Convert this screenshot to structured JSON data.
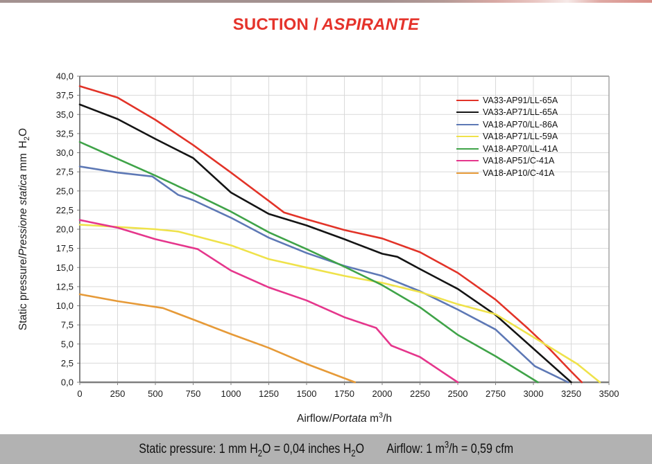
{
  "page": {
    "title_en": "SUCTION /",
    "title_it": "ASPIRANTE",
    "title_color": "#e5332b",
    "footer_bg": "#b2b2b2"
  },
  "footer": {
    "seg1_a": "Static pressure: 1 mm H",
    "seg1_sub1": "2",
    "seg1_b": "O = 0,04 inches H",
    "seg1_sub2": "2",
    "seg1_c": "O",
    "seg2_a": "Airflow: 1 m",
    "seg2_sup": "3",
    "seg2_b": "/h = 0,59 cfm"
  },
  "axis_titles": {
    "y_en": "Static pressure/",
    "y_it": "Pressione statica",
    "y_unit_a": "mm",
    "y_unit_b": "H",
    "y_unit_sub": "2",
    "y_unit_c": "O",
    "x_en": "Airflow/",
    "x_it": "Portata",
    "x_unit_a": "m",
    "x_unit_sup": "3",
    "x_unit_b": "/h"
  },
  "chart_data": {
    "type": "line",
    "title": "SUCTION / ASPIRANTE",
    "xlabel": "Airflow/Portata m3/h",
    "ylabel": "Static pressure/Pressione statica mm H2O",
    "xlim": [
      0,
      3500
    ],
    "ylim": [
      0,
      40
    ],
    "x_tick_step": 250,
    "y_tick_step": 2.5,
    "grid": true,
    "legend_position": "upper-right-inside",
    "x_ticks": [
      "0",
      "250",
      "500",
      "750",
      "1000",
      "1250",
      "1500",
      "1750",
      "2000",
      "2250",
      "2500",
      "2750",
      "3000",
      "3250",
      "3500"
    ],
    "y_ticks": [
      "0,0",
      "2,5",
      "5,0",
      "7,5",
      "10,0",
      "12,5",
      "15,0",
      "17,5",
      "20,0",
      "22,5",
      "25,0",
      "27,5",
      "30,0",
      "32,5",
      "35,0",
      "37,5",
      "40,0"
    ],
    "grid_color": "#d9d9d9",
    "series": [
      {
        "name": "VA33-AP91/LL-65A",
        "color": "#e23328",
        "points": [
          [
            0,
            38.7
          ],
          [
            250,
            37.2
          ],
          [
            500,
            34.3
          ],
          [
            750,
            31.0
          ],
          [
            1000,
            27.4
          ],
          [
            1250,
            23.7
          ],
          [
            1350,
            22.2
          ],
          [
            1500,
            21.3
          ],
          [
            1750,
            19.9
          ],
          [
            2000,
            18.8
          ],
          [
            2250,
            17.0
          ],
          [
            2500,
            14.3
          ],
          [
            2750,
            10.8
          ],
          [
            2960,
            7.1
          ],
          [
            3100,
            4.5
          ],
          [
            3250,
            1.4
          ],
          [
            3320,
            0
          ]
        ]
      },
      {
        "name": "VA33-AP71/LL-65A",
        "color": "#141414",
        "points": [
          [
            0,
            36.3
          ],
          [
            250,
            34.4
          ],
          [
            500,
            31.8
          ],
          [
            750,
            29.3
          ],
          [
            1000,
            24.8
          ],
          [
            1250,
            22.0
          ],
          [
            1500,
            20.5
          ],
          [
            1750,
            18.7
          ],
          [
            2000,
            16.8
          ],
          [
            2100,
            16.4
          ],
          [
            2250,
            14.8
          ],
          [
            2500,
            12.2
          ],
          [
            2750,
            8.8
          ],
          [
            3000,
            4.4
          ],
          [
            3250,
            0
          ]
        ]
      },
      {
        "name": "VA18-AP70/LL-86A",
        "color": "#5d78b5",
        "points": [
          [
            0,
            28.2
          ],
          [
            250,
            27.4
          ],
          [
            480,
            26.9
          ],
          [
            650,
            24.5
          ],
          [
            750,
            23.8
          ],
          [
            1000,
            21.5
          ],
          [
            1250,
            18.9
          ],
          [
            1500,
            16.9
          ],
          [
            1750,
            15.2
          ],
          [
            2000,
            13.9
          ],
          [
            2250,
            11.9
          ],
          [
            2500,
            9.5
          ],
          [
            2750,
            6.9
          ],
          [
            3010,
            2.1
          ],
          [
            3230,
            0
          ]
        ]
      },
      {
        "name": "VA18-AP71/LL-59A",
        "color": "#efe24a",
        "points": [
          [
            0,
            20.6
          ],
          [
            250,
            20.3
          ],
          [
            500,
            20.0
          ],
          [
            650,
            19.7
          ],
          [
            1000,
            17.9
          ],
          [
            1250,
            16.1
          ],
          [
            1500,
            15.0
          ],
          [
            1750,
            13.9
          ],
          [
            2000,
            13.0
          ],
          [
            2250,
            11.8
          ],
          [
            2500,
            10.2
          ],
          [
            2750,
            8.9
          ],
          [
            3000,
            5.9
          ],
          [
            3290,
            2.4
          ],
          [
            3440,
            0
          ]
        ]
      },
      {
        "name": "VA18-AP70/LL-41A",
        "color": "#3fa348",
        "points": [
          [
            0,
            31.4
          ],
          [
            250,
            29.2
          ],
          [
            500,
            27.0
          ],
          [
            750,
            24.7
          ],
          [
            1000,
            22.3
          ],
          [
            1250,
            19.6
          ],
          [
            1500,
            17.4
          ],
          [
            1750,
            15.1
          ],
          [
            2000,
            12.7
          ],
          [
            2250,
            9.8
          ],
          [
            2500,
            6.2
          ],
          [
            2750,
            3.4
          ],
          [
            3030,
            0
          ]
        ]
      },
      {
        "name": "VA18-AP51/C-41A",
        "color": "#e5368c",
        "points": [
          [
            0,
            21.2
          ],
          [
            250,
            20.2
          ],
          [
            500,
            18.7
          ],
          [
            780,
            17.4
          ],
          [
            1000,
            14.6
          ],
          [
            1250,
            12.4
          ],
          [
            1500,
            10.7
          ],
          [
            1750,
            8.5
          ],
          [
            1960,
            7.1
          ],
          [
            2060,
            4.8
          ],
          [
            2250,
            3.3
          ],
          [
            2500,
            0
          ]
        ]
      },
      {
        "name": "VA18-AP10/C-41A",
        "color": "#e69a38",
        "points": [
          [
            0,
            11.5
          ],
          [
            250,
            10.6
          ],
          [
            550,
            9.7
          ],
          [
            750,
            8.2
          ],
          [
            1000,
            6.3
          ],
          [
            1250,
            4.5
          ],
          [
            1500,
            2.4
          ],
          [
            1820,
            0
          ]
        ]
      }
    ]
  }
}
